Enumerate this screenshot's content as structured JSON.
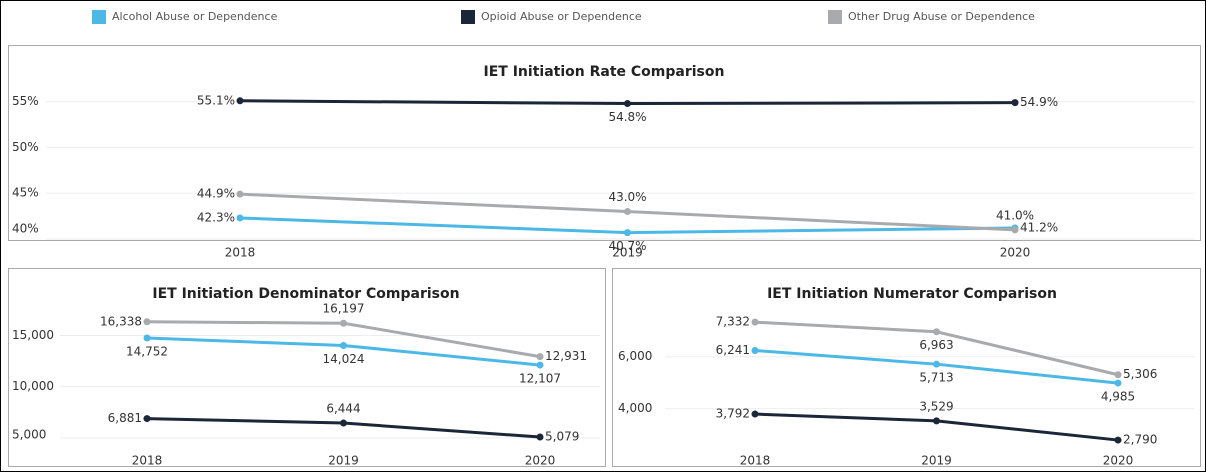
{
  "chart_data": [
    {
      "type": "line",
      "title": "IET Initiation Rate Comparison",
      "categories": [
        "2018",
        "2019",
        "2020"
      ],
      "ylim": [
        40,
        56.5
      ],
      "yticks": [
        {
          "value": 40,
          "label": "40%"
        },
        {
          "value": 45,
          "label": "45%"
        },
        {
          "value": 50,
          "label": "50%"
        },
        {
          "value": 55,
          "label": "55%"
        }
      ],
      "grid": true,
      "series": [
        {
          "name": "Alcohol Abuse or Dependence",
          "color": "#4cb8e6",
          "values": [
            42.3,
            40.7,
            41.2
          ],
          "value_labels": [
            "42.3%",
            "40.7%",
            "41.2%"
          ]
        },
        {
          "name": "Opioid Abuse or Dependence",
          "color": "#1b2638",
          "values": [
            55.1,
            54.8,
            54.9
          ],
          "value_labels": [
            "55.1%",
            "54.8%",
            "54.9%"
          ]
        },
        {
          "name": "Other Drug Abuse or Dependence",
          "color": "#a8aaad",
          "values": [
            44.9,
            43.0,
            41.0
          ],
          "value_labels": [
            "44.9%",
            "43.0%",
            "41.0%"
          ]
        }
      ]
    },
    {
      "type": "line",
      "title": "IET Initiation Denominator Comparison",
      "categories": [
        "2018",
        "2019",
        "2020"
      ],
      "ylim": [
        4300,
        17000
      ],
      "yticks": [
        {
          "value": 5000,
          "label": "5,000"
        },
        {
          "value": 10000,
          "label": "10,000"
        },
        {
          "value": 15000,
          "label": "15,000"
        }
      ],
      "grid": true,
      "series": [
        {
          "color": "#4cb8e6",
          "values": [
            14752,
            14024,
            12107
          ],
          "value_labels": [
            "14,752",
            "14,024",
            "12,107"
          ]
        },
        {
          "color": "#1b2638",
          "values": [
            6881,
            6444,
            5079
          ],
          "value_labels": [
            "6,881",
            "6,444",
            "5,079"
          ]
        },
        {
          "color": "#a8aaad",
          "values": [
            16338,
            16197,
            12931
          ],
          "value_labels": [
            "16,338",
            "16,197",
            "12,931"
          ]
        }
      ]
    },
    {
      "type": "line",
      "title": "IET Initiation Numerator Comparison",
      "categories": [
        "2018",
        "2019",
        "2020"
      ],
      "ylim": [
        2600,
        7800
      ],
      "yticks": [
        {
          "value": 4000,
          "label": "4,000"
        },
        {
          "value": 6000,
          "label": "6,000"
        }
      ],
      "grid": true,
      "series": [
        {
          "color": "#4cb8e6",
          "values": [
            6241,
            5713,
            4985
          ],
          "value_labels": [
            "6,241",
            "5,713",
            "4,985"
          ]
        },
        {
          "color": "#1b2638",
          "values": [
            3792,
            3529,
            2790
          ],
          "value_labels": [
            "3,792",
            "3,529",
            "2,790"
          ]
        },
        {
          "color": "#a8aaad",
          "values": [
            7332,
            6963,
            5306
          ],
          "value_labels": [
            "7,332",
            "6,963",
            "5,306"
          ]
        }
      ]
    }
  ]
}
